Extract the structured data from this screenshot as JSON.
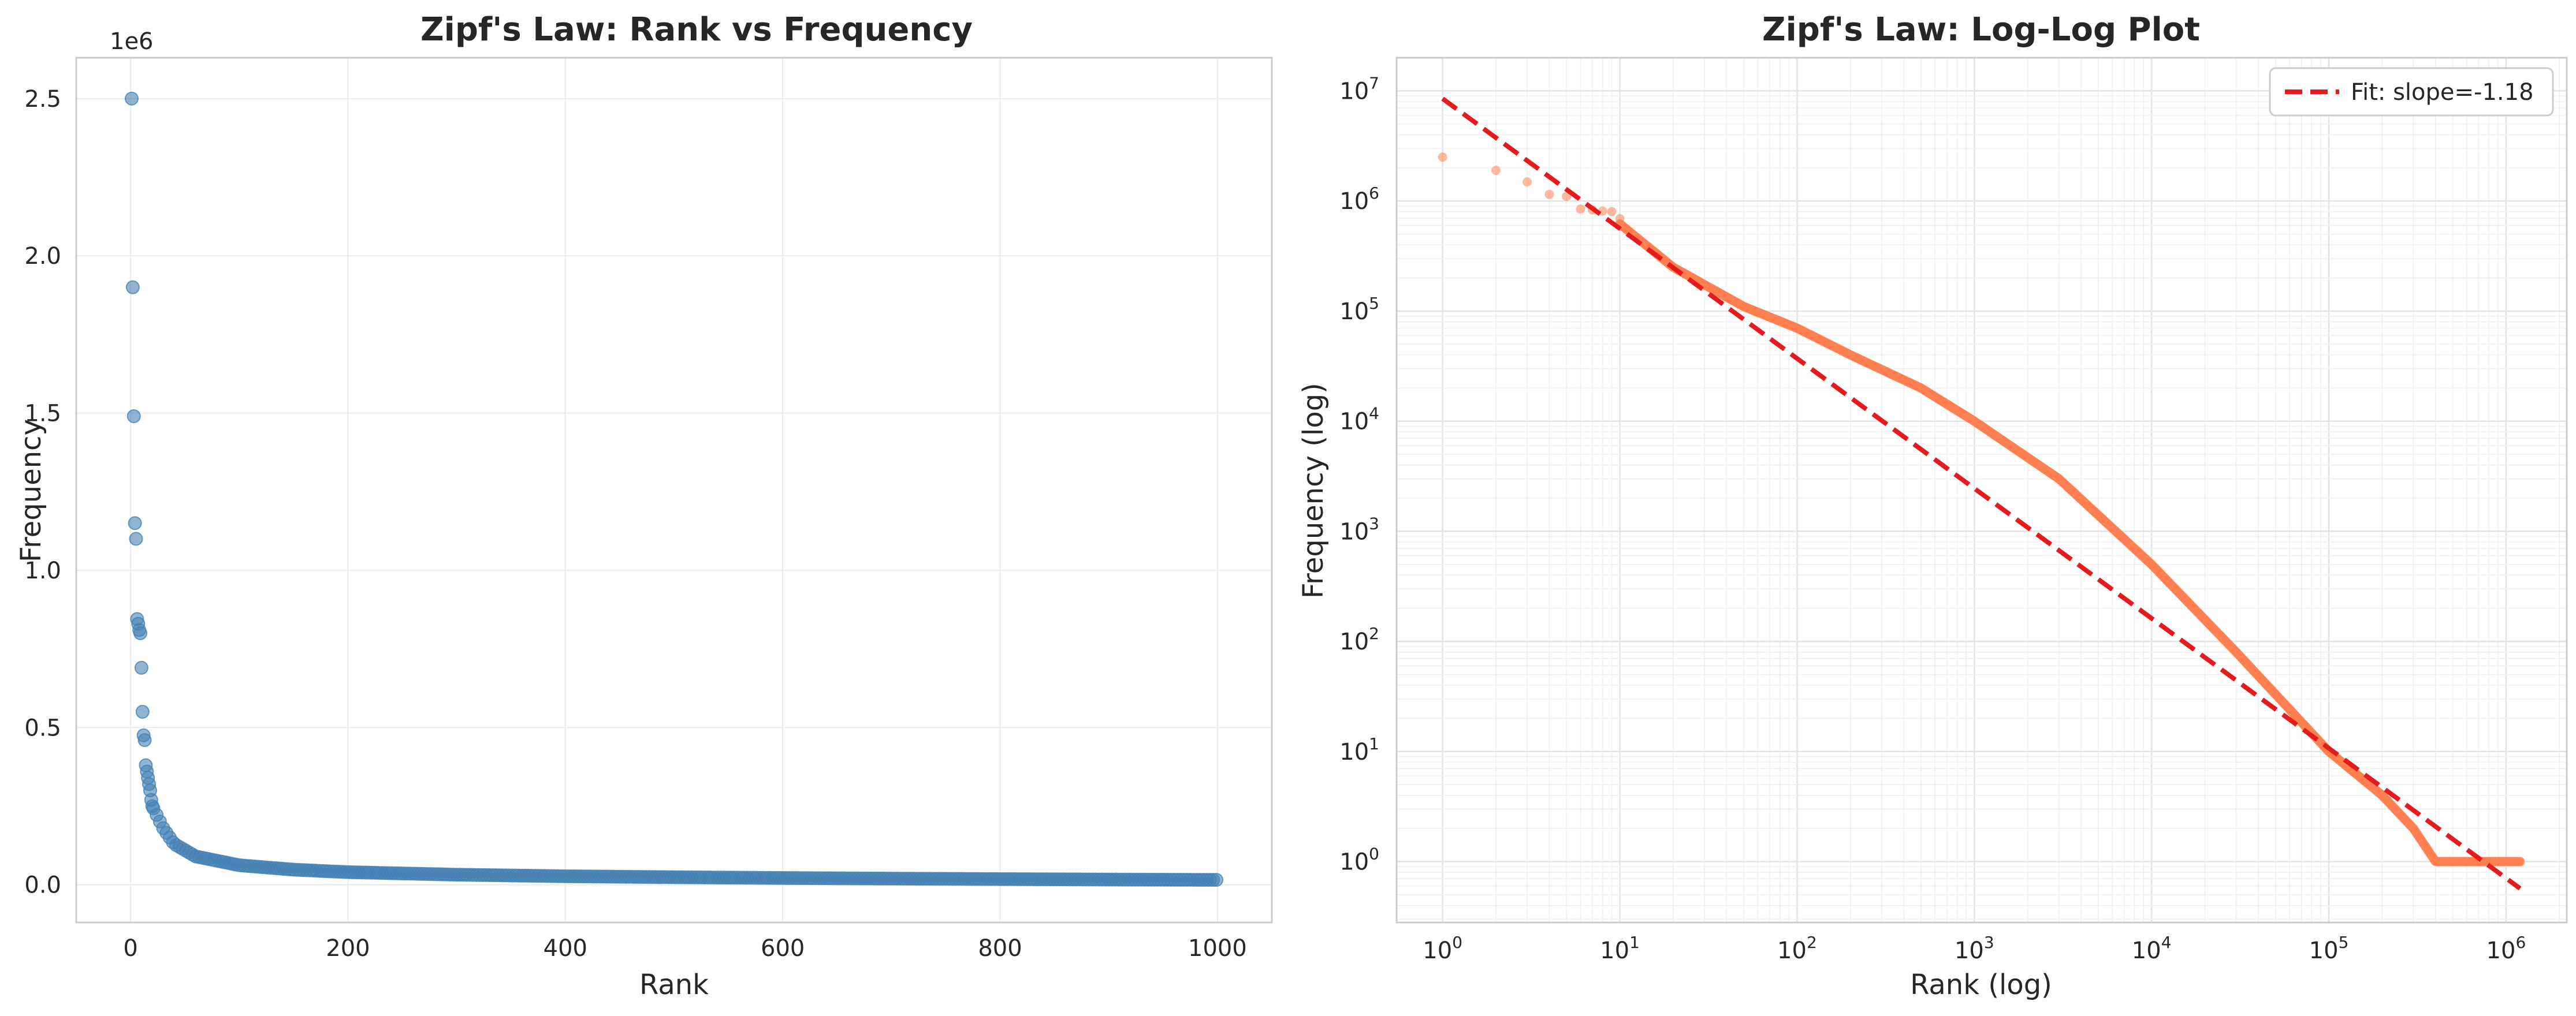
{
  "chart_data": [
    {
      "type": "scatter",
      "title": "Zipf's Law: Rank vs Frequency",
      "xlabel": "Rank",
      "ylabel": "Frequency",
      "offset_label": "1e6",
      "xlim": [
        -50,
        1050
      ],
      "ylim": [
        -120000,
        2630000
      ],
      "xticks": [
        0,
        200,
        400,
        600,
        800,
        1000
      ],
      "xtick_labels": [
        "0",
        "200",
        "400",
        "600",
        "800",
        "1000"
      ],
      "yticks": [
        0,
        500000,
        1000000,
        1500000,
        2000000,
        2500000
      ],
      "ytick_labels": [
        "0.0",
        "0.5",
        "1.0",
        "1.5",
        "2.0",
        "2.5"
      ],
      "grid": true,
      "color": "#4682b4",
      "points_described": "ranks 1-1000; frequencies of top-ranked words",
      "head_points": [
        [
          1,
          2500000
        ],
        [
          2,
          1900000
        ],
        [
          3,
          1490000
        ],
        [
          4,
          1150000
        ],
        [
          5,
          1100000
        ],
        [
          6,
          845000
        ],
        [
          7,
          830000
        ],
        [
          8,
          810000
        ],
        [
          9,
          800000
        ],
        [
          10,
          690000
        ],
        [
          11,
          550000
        ],
        [
          12,
          475000
        ],
        [
          13,
          460000
        ],
        [
          14,
          380000
        ],
        [
          15,
          360000
        ],
        [
          16,
          340000
        ],
        [
          17,
          320000
        ],
        [
          18,
          300000
        ],
        [
          19,
          270000
        ],
        [
          20,
          250000
        ]
      ],
      "tail_anchors": [
        [
          20,
          250000
        ],
        [
          30,
          180000
        ],
        [
          40,
          130000
        ],
        [
          60,
          90000
        ],
        [
          100,
          62000
        ],
        [
          150,
          48000
        ],
        [
          200,
          40000
        ],
        [
          300,
          32000
        ],
        [
          400,
          27000
        ],
        [
          500,
          24000
        ],
        [
          600,
          21500
        ],
        [
          700,
          19500
        ],
        [
          800,
          18000
        ],
        [
          900,
          16500
        ],
        [
          1000,
          15500
        ]
      ]
    },
    {
      "type": "scatter",
      "title": "Zipf's Law: Log-Log Plot",
      "xlabel": "Rank (log)",
      "ylabel": "Frequency (log)",
      "xscale": "log",
      "yscale": "log",
      "xlim": [
        0.55,
        2200000
      ],
      "ylim": [
        0.28,
        20000000
      ],
      "xtick_exponents": [
        0,
        1,
        2,
        3,
        4,
        5,
        6
      ],
      "ytick_exponents": [
        0,
        1,
        2,
        3,
        4,
        5,
        6,
        7
      ],
      "tick_base": "10",
      "grid": true,
      "color": "#ff7f50",
      "head_points": [
        [
          1,
          2500000
        ],
        [
          2,
          1900000
        ],
        [
          3,
          1490000
        ],
        [
          4,
          1150000
        ],
        [
          5,
          1100000
        ],
        [
          6,
          845000
        ],
        [
          7,
          830000
        ],
        [
          8,
          810000
        ],
        [
          9,
          800000
        ],
        [
          10,
          690000
        ]
      ],
      "curve_anchors": [
        [
          10,
          620000
        ],
        [
          20,
          250000
        ],
        [
          50,
          110000
        ],
        [
          100,
          70000
        ],
        [
          200,
          40000
        ],
        [
          500,
          20000
        ],
        [
          1000,
          10000
        ],
        [
          3000,
          3000
        ],
        [
          10000,
          500
        ],
        [
          30000,
          80
        ],
        [
          100000,
          10
        ],
        [
          200000,
          4
        ],
        [
          300000,
          2
        ],
        [
          400000,
          1
        ],
        [
          1200000,
          1
        ]
      ],
      "fit_line": {
        "label": "Fit: slope=-1.18",
        "slope": -1.18,
        "x_range": [
          1,
          1200000
        ],
        "y_start": 8500000,
        "color": "#e41a1c",
        "style": "dashed"
      },
      "legend_placement": "top-right"
    }
  ]
}
